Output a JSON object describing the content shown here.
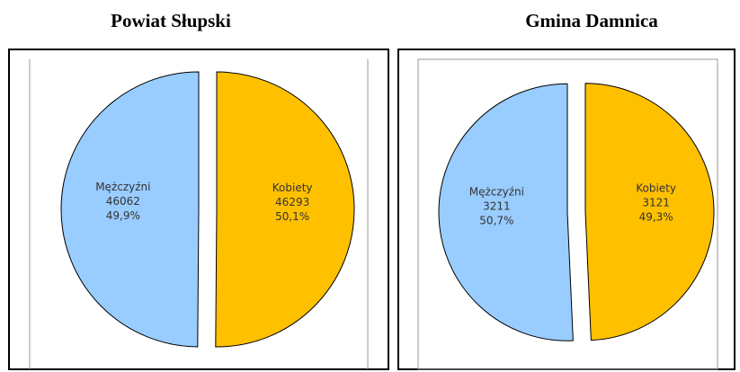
{
  "chart_data": [
    {
      "type": "pie",
      "title": "Powiat Słupski",
      "categories": [
        "Kobiety",
        "Mężczyźni"
      ],
      "values": [
        46293,
        46062
      ],
      "percents": [
        50.1,
        49.9
      ],
      "percent_labels": [
        "50,1%",
        "49,9%"
      ],
      "colors": [
        "#ffc000",
        "#99ccff"
      ]
    },
    {
      "type": "pie",
      "title": "Gmina Damnica",
      "categories": [
        "Kobiety",
        "Mężczyźni"
      ],
      "values": [
        3121,
        3211
      ],
      "percents": [
        49.3,
        50.7
      ],
      "percent_labels": [
        "49,3%",
        "50,7%"
      ],
      "colors": [
        "#ffc000",
        "#99ccff"
      ]
    }
  ]
}
